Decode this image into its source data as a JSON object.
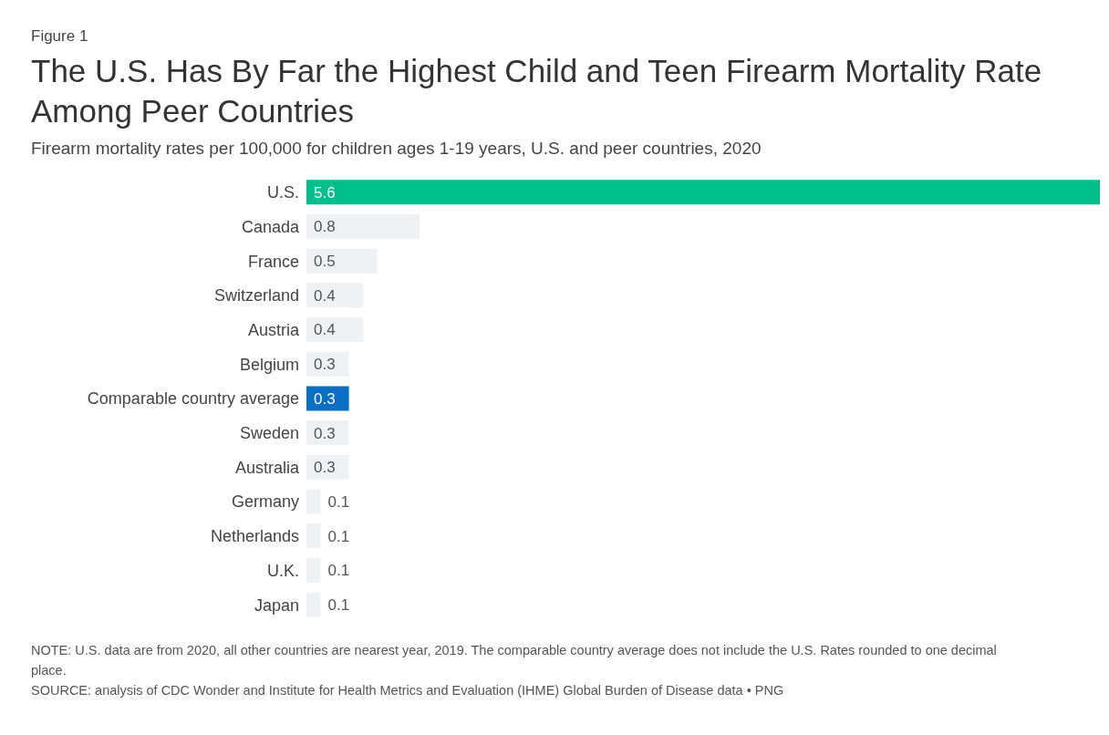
{
  "chart_data": {
    "type": "bar",
    "orientation": "horizontal",
    "title": "The U.S. Has By Far the Highest Child and Teen Firearm Mortality Rate Among Peer Countries",
    "subtitle": "Firearm mortality rates per 100,000 for children ages 1-19 years, U.S. and peer countries, 2020",
    "categories": [
      "U.S.",
      "Canada",
      "France",
      "Switzerland",
      "Austria",
      "Belgium",
      "Comparable country average",
      "Sweden",
      "Australia",
      "Germany",
      "Netherlands",
      "U.K.",
      "Japan"
    ],
    "values": [
      5.6,
      0.8,
      0.5,
      0.4,
      0.4,
      0.3,
      0.3,
      0.3,
      0.3,
      0.1,
      0.1,
      0.1,
      0.1
    ],
    "colors": [
      "#00bf8a",
      "#eef2f4",
      "#eef2f4",
      "#eef2f4",
      "#eef2f4",
      "#eef2f4",
      "#0a6fc2",
      "#eef2f4",
      "#eef2f4",
      "#eef2f4",
      "#eef2f4",
      "#eef2f4",
      "#eef2f4"
    ],
    "data_labels": true,
    "annotations": [
      "Figure 1",
      "NOTE: U.S. data are from 2020, all other countries are nearest year, 2019. The comparable country average does not include the U.S. Rates rounded to one decimal place.",
      "SOURCE: analysis of CDC Wonder and Institute for Health Metrics and Evaluation (IHME) Global Burden of Disease data • PNG"
    ]
  }
}
